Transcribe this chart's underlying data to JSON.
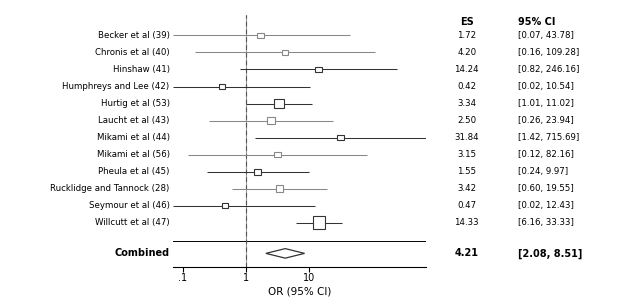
{
  "studies": [
    {
      "label": "Becker et al (39)",
      "es": 1.72,
      "ci_lo": 0.07,
      "ci_hi": 43.78,
      "weight": 1.0,
      "color": "#888888"
    },
    {
      "label": "Chronis et al (40)",
      "es": 4.2,
      "ci_lo": 0.16,
      "ci_hi": 109.28,
      "weight": 1.0,
      "color": "#888888"
    },
    {
      "label": "Hinshaw (41)",
      "es": 14.24,
      "ci_lo": 0.82,
      "ci_hi": 246.16,
      "weight": 1.0,
      "color": "#333333"
    },
    {
      "label": "Humphreys and Lee (42)",
      "es": 0.42,
      "ci_lo": 0.02,
      "ci_hi": 10.54,
      "weight": 1.0,
      "color": "#333333"
    },
    {
      "label": "Hurtig et al (53)",
      "es": 3.34,
      "ci_lo": 1.01,
      "ci_hi": 11.02,
      "weight": 3.0,
      "color": "#333333"
    },
    {
      "label": "Laucht et al (43)",
      "es": 2.5,
      "ci_lo": 0.26,
      "ci_hi": 23.94,
      "weight": 1.5,
      "color": "#888888"
    },
    {
      "label": "Mikami et al (44)",
      "es": 31.84,
      "ci_lo": 1.42,
      "ci_hi": 715.69,
      "weight": 1.0,
      "color": "#333333"
    },
    {
      "label": "Mikami et al (56)",
      "es": 3.15,
      "ci_lo": 0.12,
      "ci_hi": 82.16,
      "weight": 1.0,
      "color": "#888888"
    },
    {
      "label": "Pheula et al (45)",
      "es": 1.55,
      "ci_lo": 0.24,
      "ci_hi": 9.97,
      "weight": 1.5,
      "color": "#333333"
    },
    {
      "label": "Rucklidge and Tannock (28)",
      "es": 3.42,
      "ci_lo": 0.6,
      "ci_hi": 19.55,
      "weight": 1.8,
      "color": "#888888"
    },
    {
      "label": "Seymour et al (46)",
      "es": 0.47,
      "ci_lo": 0.02,
      "ci_hi": 12.43,
      "weight": 1.0,
      "color": "#333333"
    },
    {
      "label": "Willcutt et al (47)",
      "es": 14.33,
      "ci_lo": 6.16,
      "ci_hi": 33.33,
      "weight": 5.0,
      "color": "#333333"
    }
  ],
  "combined": {
    "es": 4.21,
    "ci_lo": 2.08,
    "ci_hi": 8.51
  },
  "xmin": 0.07,
  "xmax": 700,
  "xticks": [
    0.1,
    1,
    10
  ],
  "xticklabels": [
    ".1",
    "1",
    "10"
  ],
  "vline_x": 1.0,
  "xlabel": "OR (95% CI)",
  "col_es_header": "ES",
  "col_ci_header": "95% CI"
}
